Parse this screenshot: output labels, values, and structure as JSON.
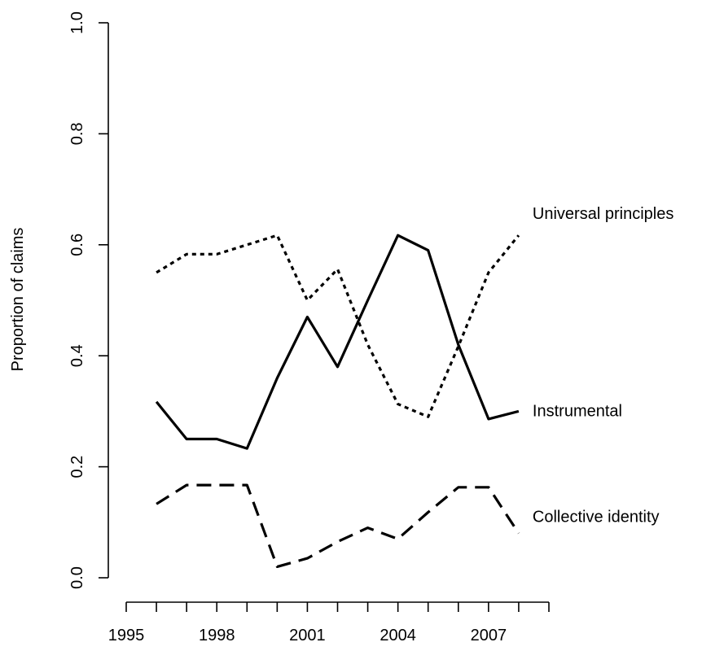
{
  "chart_data": {
    "type": "line",
    "title": "",
    "xlabel": "",
    "ylabel": "Proportion of claims",
    "xlim": [
      1995,
      2009
    ],
    "ylim": [
      0.0,
      1.0
    ],
    "x_ticks": [
      1995,
      1996,
      1997,
      1998,
      1999,
      2000,
      2001,
      2002,
      2003,
      2004,
      2005,
      2006,
      2007,
      2008,
      2009
    ],
    "x_tick_labels": [
      "1995",
      "1998",
      "2001",
      "2004",
      "2007"
    ],
    "x_tick_label_values": [
      1995,
      1998,
      2001,
      2004,
      2007
    ],
    "y_ticks": [
      0.0,
      0.2,
      0.4,
      0.6,
      0.8,
      1.0
    ],
    "y_tick_labels": [
      "0.0",
      "0.2",
      "0.4",
      "0.6",
      "0.8",
      "1.0"
    ],
    "grid": false,
    "legend": "none",
    "x": [
      1996,
      1997,
      1998,
      1999,
      2000,
      2001,
      2002,
      2003,
      2004,
      2005,
      2006,
      2007,
      2008
    ],
    "series": [
      {
        "name": "Universal principles",
        "line_style": "dotted",
        "values": [
          0.55,
          0.583,
          0.583,
          0.6,
          0.617,
          0.5,
          0.556,
          0.42,
          0.313,
          0.29,
          0.417,
          0.55,
          0.617
        ]
      },
      {
        "name": "Instrumental",
        "line_style": "solid",
        "values": [
          0.317,
          0.25,
          0.25,
          0.233,
          0.36,
          0.47,
          0.38,
          0.5,
          0.617,
          0.59,
          0.42,
          0.286,
          0.3
        ]
      },
      {
        "name": "Collective identity",
        "line_style": "dashed",
        "values": [
          0.133,
          0.167,
          0.167,
          0.167,
          0.02,
          0.035,
          0.065,
          0.09,
          0.07,
          0.118,
          0.163,
          0.163,
          0.08
        ]
      }
    ]
  }
}
